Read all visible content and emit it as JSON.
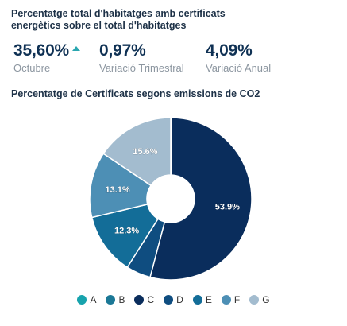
{
  "header": {
    "title": "Percentatge total d'habitatges amb certificats energètics sobre el total d'habitatges"
  },
  "kpis": [
    {
      "value": "35,60%",
      "label": "Octubre",
      "trend": "up",
      "trend_color": "#2aa7b0"
    },
    {
      "value": "0,97%",
      "label": "Variació Trimestral"
    },
    {
      "value": "4,09%",
      "label": "Variació Anual"
    }
  ],
  "chart_title": "Percentatge de Certificats segons emissions de CO2",
  "chart_data": {
    "type": "pie",
    "donut": true,
    "categories": [
      "A",
      "B",
      "C",
      "D",
      "E",
      "F",
      "G"
    ],
    "values": [
      0.1,
      0.1,
      53.9,
      4.9,
      12.3,
      13.1,
      15.6
    ],
    "labels": [
      "",
      "",
      "53.9%",
      "",
      "12.3%",
      "13.1%",
      "15.6%"
    ],
    "colors": [
      "#17a3ad",
      "#1b7896",
      "#0a2d5c",
      "#0f4d80",
      "#136d98",
      "#4d8fb5",
      "#a3bccf"
    ],
    "start_angle_deg": 0,
    "direction": "clockwise",
    "legend_position": "bottom"
  }
}
